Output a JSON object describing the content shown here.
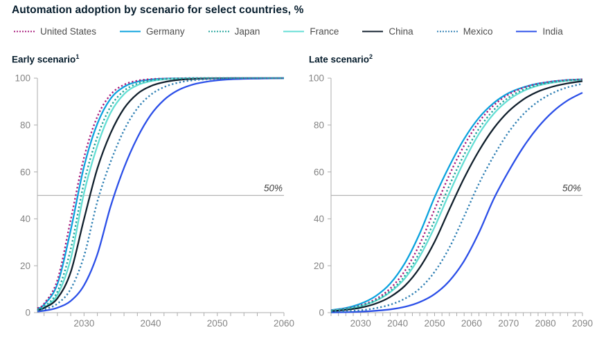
{
  "header": {
    "title": "Automation adoption by scenario for select countries, %"
  },
  "legend": {
    "items": [
      {
        "label": "United States",
        "color": "#A81C7C",
        "dashed": true
      },
      {
        "label": "Germany",
        "color": "#0BA2DE",
        "dashed": false
      },
      {
        "label": "Japan",
        "color": "#21A39B",
        "dashed": true
      },
      {
        "label": "France",
        "color": "#63DED4",
        "dashed": false
      },
      {
        "label": "China",
        "color": "#101F2C",
        "dashed": false
      },
      {
        "label": "Mexico",
        "color": "#3080B4",
        "dashed": true
      },
      {
        "label": "India",
        "color": "#2B4FE8",
        "dashed": false
      }
    ]
  },
  "panels": [
    {
      "title": "Early scenario",
      "sup": "1"
    },
    {
      "title": "Late scenario",
      "sup": "2"
    }
  ],
  "palette": {
    "axis": "#ABABAB",
    "tick_label": "#848484",
    "ref_line": "#B3B3B3",
    "ref_label": "#3F3F3F"
  },
  "chart_data": [
    {
      "type": "line",
      "title": "Early scenario",
      "xlabel": "",
      "ylabel": "%",
      "x_domain": [
        2023,
        2060
      ],
      "ylim": [
        0,
        100
      ],
      "xticks_labeled": [
        2030,
        2040,
        2050,
        2060
      ],
      "minor_tick_step": 2,
      "yticks": [
        0,
        20,
        40,
        60,
        80,
        100
      ],
      "grid": false,
      "ref_line": {
        "value": 50,
        "label": "50%"
      },
      "years": [
        2023,
        2024,
        2026,
        2028,
        2030,
        2032,
        2034,
        2036,
        2038,
        2040,
        2042,
        2044,
        2046,
        2048,
        2050,
        2052,
        2054,
        2056,
        2058,
        2060
      ],
      "series": [
        {
          "name": "United States",
          "color": "#A81C7C",
          "dashed": true,
          "values": [
            1.9,
            3.8,
            13.9,
            39.6,
            66.2,
            83.6,
            93.0,
            97.2,
            98.9,
            99.6,
            99.8,
            99.9,
            100,
            100,
            100,
            100,
            100,
            100,
            100,
            100
          ]
        },
        {
          "name": "Germany",
          "color": "#0BA2DE",
          "dashed": false,
          "values": [
            1.8,
            3.4,
            12.2,
            35.2,
            62.4,
            80.6,
            91.3,
            96.3,
            98.5,
            99.4,
            99.8,
            99.9,
            100,
            100,
            100,
            100,
            100,
            100,
            100,
            100
          ]
        },
        {
          "name": "Japan",
          "color": "#21A39B",
          "dashed": true,
          "values": [
            1.4,
            2.6,
            9.0,
            27.1,
            55.5,
            75.0,
            87.9,
            94.6,
            97.7,
            99.0,
            99.6,
            99.8,
            99.9,
            100,
            100,
            100,
            100,
            100,
            100,
            100
          ]
        },
        {
          "name": "France",
          "color": "#63DED4",
          "dashed": false,
          "values": [
            1.2,
            2.2,
            7.6,
            22.9,
            51.1,
            71.2,
            85.3,
            93.2,
            97.0,
            98.7,
            99.5,
            99.8,
            99.9,
            100,
            100,
            100,
            100,
            100,
            100,
            100
          ]
        },
        {
          "name": "China",
          "color": "#101F2C",
          "dashed": false,
          "values": [
            1.1,
            2.0,
            6.1,
            17.3,
            40.0,
            61.5,
            76.6,
            87.1,
            93.3,
            96.6,
            98.3,
            99.2,
            99.6,
            99.8,
            99.9,
            100,
            100,
            100,
            100,
            100
          ]
        },
        {
          "name": "Mexico",
          "color": "#3080B4",
          "dashed": true,
          "values": [
            0.8,
            1.4,
            3.8,
            10.1,
            24.2,
            47.4,
            64.4,
            77.8,
            87.1,
            92.9,
            96.2,
            98.0,
            99.0,
            99.5,
            99.7,
            99.9,
            100,
            100,
            100,
            100
          ]
        },
        {
          "name": "India",
          "color": "#2B4FE8",
          "dashed": false,
          "values": [
            0.5,
            0.8,
            2.1,
            5.0,
            11.7,
            24.9,
            45.4,
            61.8,
            74.6,
            84.3,
            90.7,
            94.7,
            97.0,
            98.3,
            99.1,
            99.5,
            99.7,
            99.8,
            99.9,
            100
          ]
        }
      ]
    },
    {
      "type": "line",
      "title": "Late scenario",
      "xlabel": "",
      "ylabel": "%",
      "x_domain": [
        2022,
        2090
      ],
      "ylim": [
        0,
        100
      ],
      "xticks_labeled": [
        2030,
        2040,
        2050,
        2060,
        2070,
        2080,
        2090
      ],
      "minor_tick_step": 2,
      "yticks": [
        0,
        20,
        40,
        60,
        80,
        100
      ],
      "grid": false,
      "ref_line": {
        "value": 50,
        "label": "50%"
      },
      "years": [
        2022,
        2026,
        2030,
        2034,
        2038,
        2042,
        2046,
        2050,
        2054,
        2058,
        2062,
        2066,
        2070,
        2074,
        2078,
        2082,
        2086,
        2090
      ],
      "series": [
        {
          "name": "United States",
          "color": "#A81C7C",
          "dashed": true,
          "values": [
            0.9,
            1.7,
            3.1,
            5.7,
            10.3,
            17.9,
            29.3,
            44.0,
            58.7,
            71.3,
            81.3,
            88.4,
            93.0,
            95.9,
            97.6,
            98.6,
            99.2,
            99.5
          ]
        },
        {
          "name": "Germany",
          "color": "#0BA2DE",
          "dashed": false,
          "values": [
            1.1,
            2.0,
            3.8,
            7.0,
            12.4,
            21.2,
            33.8,
            49.2,
            62.5,
            74.1,
            83.1,
            89.4,
            93.6,
            96.1,
            97.7,
            98.6,
            99.2,
            99.5
          ]
        },
        {
          "name": "Japan",
          "color": "#21A39B",
          "dashed": true,
          "values": [
            0.8,
            1.5,
            2.8,
            5.2,
            9.2,
            15.8,
            25.8,
            39.3,
            54.2,
            67.4,
            78.4,
            86.4,
            91.7,
            95.1,
            97.1,
            98.3,
            99.0,
            99.4
          ]
        },
        {
          "name": "France",
          "color": "#63DED4",
          "dashed": false,
          "values": [
            0.9,
            1.5,
            2.8,
            5.0,
            8.7,
            14.7,
            24.0,
            36.5,
            51.0,
            64.6,
            76.2,
            84.8,
            90.7,
            94.5,
            96.8,
            98.1,
            98.9,
            99.3
          ]
        },
        {
          "name": "China",
          "color": "#101F2C",
          "dashed": false,
          "values": [
            0.6,
            1.2,
            2.1,
            3.8,
            6.7,
            11.5,
            19.2,
            30.2,
            44.0,
            57.4,
            69.0,
            78.6,
            85.8,
            90.9,
            94.3,
            96.4,
            97.8,
            98.7
          ]
        },
        {
          "name": "Mexico",
          "color": "#3080B4",
          "dashed": true,
          "values": [
            0.3,
            0.6,
            1.0,
            1.9,
            3.4,
            6.0,
            10.3,
            17.4,
            27.7,
            41.1,
            55.0,
            66.8,
            76.9,
            84.6,
            90.0,
            93.7,
            96.1,
            97.6
          ]
        },
        {
          "name": "India",
          "color": "#2B4FE8",
          "dashed": false,
          "values": [
            0.1,
            0.2,
            0.4,
            0.8,
            1.4,
            2.5,
            4.5,
            7.9,
            13.5,
            22.1,
            34.1,
            48.5,
            60.2,
            70.6,
            79.1,
            85.7,
            90.5,
            93.8
          ]
        }
      ]
    }
  ]
}
